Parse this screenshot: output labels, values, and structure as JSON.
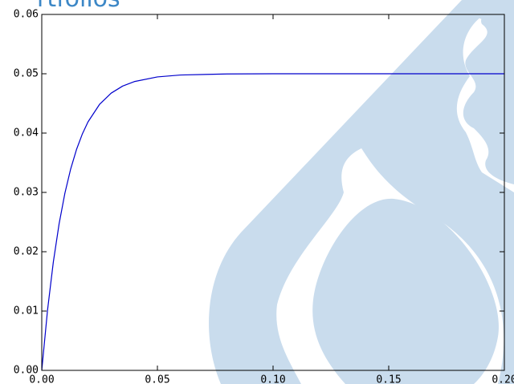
{
  "chart_data": {
    "type": "line",
    "title": "rtfolios",
    "x": [
      0,
      0.0025,
      0.005,
      0.0075,
      0.01,
      0.0125,
      0.015,
      0.0175,
      0.02,
      0.025,
      0.03,
      0.035,
      0.04,
      0.05,
      0.06,
      0.08,
      0.1,
      0.2
    ],
    "series": [
      {
        "color": "#0000cc",
        "values": [
          0,
          0.01017,
          0.01826,
          0.02471,
          0.02986,
          0.03395,
          0.03721,
          0.03981,
          0.04189,
          0.04485,
          0.04673,
          0.04793,
          0.04868,
          0.04947,
          0.04979,
          0.04997,
          0.05,
          0.05
        ]
      }
    ],
    "xlim": [
      0,
      0.2
    ],
    "xticks": [
      {
        "value": 0,
        "label": "0.00"
      },
      0.05,
      {
        "value": 0.1,
        "label": "0.10"
      },
      0.15,
      {
        "value": 0.2,
        "label": "0.20"
      }
    ],
    "ylim": [
      0,
      0.06
    ],
    "yticks": [
      {
        "value": 0,
        "label": "0.00"
      },
      0.01,
      0.02,
      0.03,
      0.04,
      0.05,
      0.06
    ]
  }
}
